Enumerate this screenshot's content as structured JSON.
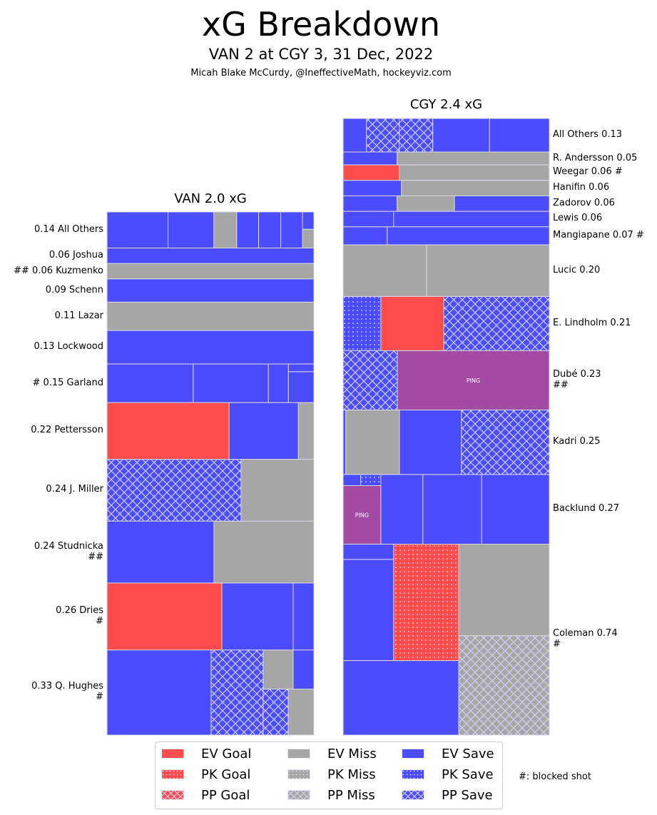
{
  "header": {
    "title": "xG Breakdown",
    "subtitle": "VAN 2 at CGY 3, 31 Dec, 2022",
    "credit": "Micah Blake McCurdy, @IneffectiveMath, hockeyviz.com"
  },
  "colors": {
    "goal": "#ff4b4b",
    "miss": "#a6a6a6",
    "save": "#4b4bff",
    "ping": "#a34ba3",
    "edge": "#d9d9e6"
  },
  "legend": {
    "items": [
      {
        "label": "EV Goal",
        "color": "goal",
        "pattern": "solid"
      },
      {
        "label": "PK Goal",
        "color": "goal",
        "pattern": "dots"
      },
      {
        "label": "PP Goal",
        "color": "goal",
        "pattern": "cross"
      },
      {
        "label": "EV Miss",
        "color": "miss",
        "pattern": "solid"
      },
      {
        "label": "PK Miss",
        "color": "miss",
        "pattern": "dots"
      },
      {
        "label": "PP Miss",
        "color": "miss",
        "pattern": "cross"
      },
      {
        "label": "EV Save",
        "color": "save",
        "pattern": "solid"
      },
      {
        "label": "PK Save",
        "color": "save",
        "pattern": "dots"
      },
      {
        "label": "PP Save",
        "color": "save",
        "pattern": "cross"
      }
    ],
    "note": "#: blocked shot"
  },
  "chart_data": [
    {
      "type": "treemap",
      "title": "VAN 2.0 xG",
      "team": "VAN",
      "total_xg": 2.0,
      "label_side": "left",
      "rows": [
        {
          "label": "0.14 All Others",
          "xg": 0.14,
          "shots": [
            {
              "x0": 0,
              "x1": 0.295,
              "y0": 0,
              "y1": 1,
              "t": "save",
              "p": "solid"
            },
            {
              "x0": 0.295,
              "x1": 0.516,
              "y0": 0,
              "y1": 1,
              "t": "save",
              "p": "solid"
            },
            {
              "x0": 0.516,
              "x1": 0.627,
              "y0": 0,
              "y1": 1,
              "t": "miss",
              "p": "solid"
            },
            {
              "x0": 0.627,
              "x1": 0.733,
              "y0": 0,
              "y1": 1,
              "t": "save",
              "p": "solid"
            },
            {
              "x0": 0.733,
              "x1": 0.84,
              "y0": 0,
              "y1": 1,
              "t": "save",
              "p": "solid",
              "alt": "miss"
            },
            {
              "x0": 0.84,
              "x1": 0.945,
              "y0": 0,
              "y1": 1,
              "t": "save",
              "p": "solid"
            },
            {
              "x0": 0.945,
              "x1": 1,
              "y0": 0,
              "y1": 0.48,
              "t": "save",
              "p": "solid"
            },
            {
              "x0": 0.945,
              "x1": 1,
              "y0": 0.48,
              "y1": 1,
              "t": "miss",
              "p": "solid"
            }
          ]
        },
        {
          "label": "0.06 Joshua",
          "xg": 0.06,
          "shots": [
            {
              "x0": 0,
              "x1": 1,
              "y0": 0,
              "y1": 1,
              "t": "save",
              "p": "solid"
            }
          ]
        },
        {
          "label": "## 0.06 Kuzmenko",
          "xg": 0.06,
          "shots": [
            {
              "x0": 0,
              "x1": 1,
              "y0": 0,
              "y1": 1,
              "t": "miss",
              "p": "solid"
            }
          ]
        },
        {
          "label": "0.09 Schenn",
          "xg": 0.09,
          "shots": [
            {
              "x0": 0,
              "x1": 1,
              "y0": 0,
              "y1": 1,
              "t": "save",
              "p": "solid"
            }
          ]
        },
        {
          "label": "0.11 Lazar",
          "xg": 0.11,
          "shots": [
            {
              "x0": 0,
              "x1": 1,
              "y0": 0,
              "y1": 1,
              "t": "miss",
              "p": "solid"
            }
          ]
        },
        {
          "label": "0.13 Lockwood",
          "xg": 0.13,
          "shots": [
            {
              "x0": 0,
              "x1": 1,
              "y0": 0,
              "y1": 1,
              "t": "save",
              "p": "solid"
            }
          ]
        },
        {
          "label": "# 0.15 Garland",
          "xg": 0.15,
          "shots": [
            {
              "x0": 0,
              "x1": 0.417,
              "y0": 0,
              "y1": 1,
              "t": "save",
              "p": "solid"
            },
            {
              "x0": 0.417,
              "x1": 0.78,
              "y0": 0,
              "y1": 1,
              "t": "save",
              "p": "solid"
            },
            {
              "x0": 0.78,
              "x1": 0.877,
              "y0": 0,
              "y1": 1,
              "t": "save",
              "p": "solid"
            },
            {
              "x0": 0.877,
              "x1": 1,
              "y0": 0,
              "y1": 0.2,
              "t": "save",
              "p": "solid"
            },
            {
              "x0": 0.877,
              "x1": 1,
              "y0": 0.2,
              "y1": 1,
              "t": "save",
              "p": "solid"
            }
          ]
        },
        {
          "label": "0.22 Pettersson",
          "xg": 0.22,
          "shots": [
            {
              "x0": 0,
              "x1": 0.59,
              "y0": 0,
              "y1": 1,
              "t": "goal",
              "p": "solid"
            },
            {
              "x0": 0.59,
              "x1": 0.925,
              "y0": 0,
              "y1": 1,
              "t": "save",
              "p": "solid"
            },
            {
              "x0": 0.925,
              "x1": 1,
              "y0": 0,
              "y1": 1,
              "t": "miss",
              "p": "solid"
            }
          ]
        },
        {
          "label": "0.24 J. Miller",
          "xg": 0.24,
          "shots": [
            {
              "x0": 0,
              "x1": 0.648,
              "y0": 0,
              "y1": 1,
              "t": "save",
              "p": "cross"
            },
            {
              "x0": 0.648,
              "x1": 1,
              "y0": 0,
              "y1": 1,
              "t": "miss",
              "p": "solid"
            }
          ]
        },
        {
          "label": "0.24 Studnicka\n##",
          "xg": 0.24,
          "shots": [
            {
              "x0": 0,
              "x1": 0.517,
              "y0": 0,
              "y1": 1,
              "t": "save",
              "p": "solid"
            },
            {
              "x0": 0.517,
              "x1": 1,
              "y0": 0,
              "y1": 1,
              "t": "miss",
              "p": "solid"
            }
          ]
        },
        {
          "label": "0.26 Dries\n#",
          "xg": 0.26,
          "shots": [
            {
              "x0": 0,
              "x1": 0.555,
              "y0": 0,
              "y1": 1,
              "t": "goal",
              "p": "solid"
            },
            {
              "x0": 0.555,
              "x1": 0.9,
              "y0": 0,
              "y1": 1,
              "t": "save",
              "p": "solid"
            },
            {
              "x0": 0.9,
              "x1": 1,
              "y0": 0,
              "y1": 1,
              "t": "save",
              "p": "solid"
            }
          ]
        },
        {
          "label": "0.33 Q. Hughes\n#",
          "xg": 0.33,
          "shots": [
            {
              "x0": 0,
              "x1": 0.503,
              "y0": 0,
              "y1": 1,
              "t": "save",
              "p": "solid"
            },
            {
              "x0": 0.503,
              "x1": 0.755,
              "y0": 0,
              "y1": 1,
              "t": "save",
              "p": "cross"
            },
            {
              "x0": 0.755,
              "x1": 0.9,
              "y0": 0,
              "y1": 0.46,
              "t": "miss",
              "p": "solid"
            },
            {
              "x0": 0.9,
              "x1": 1,
              "y0": 0,
              "y1": 0.46,
              "t": "save",
              "p": "solid"
            },
            {
              "x0": 0.755,
              "x1": 0.876,
              "y0": 0.46,
              "y1": 1,
              "t": "save",
              "p": "cross"
            },
            {
              "x0": 0.876,
              "x1": 1,
              "y0": 0.46,
              "y1": 1,
              "t": "miss",
              "p": "solid"
            }
          ]
        }
      ]
    },
    {
      "type": "treemap",
      "title": "CGY 2.4 xG",
      "team": "CGY",
      "total_xg": 2.4,
      "label_side": "right",
      "rows": [
        {
          "label": "All Others 0.13",
          "xg": 0.13,
          "shots": [
            {
              "x0": 0,
              "x1": 0.113,
              "y0": 0,
              "y1": 1,
              "t": "save",
              "p": "solid"
            },
            {
              "x0": 0.113,
              "x1": 0.272,
              "y0": 0,
              "y1": 1,
              "t": "save",
              "p": "cross"
            },
            {
              "x0": 0.272,
              "x1": 0.435,
              "y0": 0,
              "y1": 1,
              "t": "save",
              "p": "cross"
            },
            {
              "x0": 0.435,
              "x1": 0.71,
              "y0": 0,
              "y1": 1,
              "t": "save",
              "p": "solid"
            },
            {
              "x0": 0.71,
              "x1": 1,
              "y0": 0,
              "y1": 1,
              "t": "save",
              "p": "solid"
            }
          ]
        },
        {
          "label": "R. Andersson 0.05",
          "xg": 0.05,
          "shots": [
            {
              "x0": 0,
              "x1": 0.262,
              "y0": 0,
              "y1": 1,
              "t": "save",
              "p": "solid"
            },
            {
              "x0": 0.262,
              "x1": 1,
              "y0": 0,
              "y1": 1,
              "t": "miss",
              "p": "solid"
            }
          ]
        },
        {
          "label": "Weegar 0.06 #",
          "xg": 0.06,
          "shots": [
            {
              "x0": 0,
              "x1": 0.272,
              "y0": 0,
              "y1": 1,
              "t": "goal",
              "p": "solid"
            },
            {
              "x0": 0.272,
              "x1": 1,
              "y0": 0,
              "y1": 1,
              "t": "miss",
              "p": "solid"
            }
          ]
        },
        {
          "label": "Hanifin 0.06",
          "xg": 0.06,
          "shots": [
            {
              "x0": 0,
              "x1": 0.283,
              "y0": 0,
              "y1": 1,
              "t": "save",
              "p": "solid"
            },
            {
              "x0": 0.283,
              "x1": 1,
              "y0": 0,
              "y1": 1,
              "t": "miss",
              "p": "solid"
            }
          ]
        },
        {
          "label": "Zadorov 0.06",
          "xg": 0.06,
          "shots": [
            {
              "x0": 0,
              "x1": 0.262,
              "y0": 0,
              "y1": 1,
              "t": "save",
              "p": "solid"
            },
            {
              "x0": 0.262,
              "x1": 0.54,
              "y0": 0,
              "y1": 1,
              "t": "miss",
              "p": "solid"
            },
            {
              "x0": 0.54,
              "x1": 1,
              "y0": 0,
              "y1": 1,
              "t": "save",
              "p": "solid"
            }
          ]
        },
        {
          "label": "Lewis 0.06",
          "xg": 0.06,
          "shots": [
            {
              "x0": 0,
              "x1": 0.245,
              "y0": 0,
              "y1": 1,
              "t": "save",
              "p": "solid"
            },
            {
              "x0": 0.245,
              "x1": 1,
              "y0": 0,
              "y1": 1,
              "t": "save",
              "p": "solid"
            }
          ]
        },
        {
          "label": "Mangiapane 0.07 #",
          "xg": 0.07,
          "shots": [
            {
              "x0": 0,
              "x1": 0.214,
              "y0": 0,
              "y1": 1,
              "t": "save",
              "p": "solid"
            },
            {
              "x0": 0.214,
              "x1": 1,
              "y0": 0,
              "y1": 1,
              "t": "save",
              "p": "solid"
            }
          ]
        },
        {
          "label": "Lucic 0.20",
          "xg": 0.2,
          "shots": [
            {
              "x0": 0,
              "x1": 0.405,
              "y0": 0,
              "y1": 1,
              "t": "miss",
              "p": "solid"
            },
            {
              "x0": 0.405,
              "x1": 1,
              "y0": 0,
              "y1": 1,
              "t": "miss",
              "p": "solid"
            }
          ]
        },
        {
          "label": "E. Lindholm 0.21",
          "xg": 0.21,
          "shots": [
            {
              "x0": 0,
              "x1": 0.183,
              "y0": 0,
              "y1": 1,
              "t": "save",
              "p": "dots"
            },
            {
              "x0": 0.183,
              "x1": 0.488,
              "y0": 0,
              "y1": 1,
              "t": "goal",
              "p": "solid"
            },
            {
              "x0": 0.488,
              "x1": 1,
              "y0": 0,
              "y1": 1,
              "t": "save",
              "p": "cross"
            }
          ]
        },
        {
          "label": "Dubé 0.23\n##",
          "xg": 0.23,
          "shots": [
            {
              "x0": 0,
              "x1": 0.263,
              "y0": 0,
              "y1": 1,
              "t": "save",
              "p": "cross"
            },
            {
              "x0": 0.263,
              "x1": 1,
              "y0": 0,
              "y1": 1,
              "t": "ping",
              "p": "solid",
              "text": "PING"
            }
          ]
        },
        {
          "label": "Kadri 0.25",
          "xg": 0.25,
          "shots": [
            {
              "x0": 0,
              "x1": 0.013,
              "y0": 0,
              "y1": 1,
              "t": "save",
              "p": "solid"
            },
            {
              "x0": 0.013,
              "x1": 0.273,
              "y0": 0,
              "y1": 1,
              "t": "miss",
              "p": "solid"
            },
            {
              "x0": 0.273,
              "x1": 0.574,
              "y0": 0,
              "y1": 1,
              "t": "save",
              "p": "solid"
            },
            {
              "x0": 0.574,
              "x1": 1,
              "y0": 0,
              "y1": 1,
              "t": "save",
              "p": "cross"
            }
          ]
        },
        {
          "label": "Backlund 0.27",
          "xg": 0.27,
          "shots": [
            {
              "x0": 0,
              "x1": 0.085,
              "y0": 0,
              "y1": 0.16,
              "t": "save",
              "p": "solid"
            },
            {
              "x0": 0.085,
              "x1": 0.183,
              "y0": 0,
              "y1": 0.16,
              "t": "save",
              "p": "dots"
            },
            {
              "x0": 0,
              "x1": 0.183,
              "y0": 0.16,
              "y1": 1,
              "t": "ping",
              "p": "solid",
              "text": "PING"
            },
            {
              "x0": 0.183,
              "x1": 0.387,
              "y0": 0,
              "y1": 1,
              "t": "save",
              "p": "solid"
            },
            {
              "x0": 0.387,
              "x1": 0.672,
              "y0": 0,
              "y1": 1,
              "t": "save",
              "p": "solid"
            },
            {
              "x0": 0.672,
              "x1": 1,
              "y0": 0,
              "y1": 1,
              "t": "save",
              "p": "solid"
            }
          ]
        },
        {
          "label": "Coleman 0.74\n#",
          "xg": 0.74,
          "shots": [
            {
              "x0": 0,
              "x1": 0.245,
              "y0": 0,
              "y1": 0.08,
              "t": "save",
              "p": "solid"
            },
            {
              "x0": 0,
              "x1": 0.245,
              "y0": 0.08,
              "y1": 0.61,
              "t": "save",
              "p": "solid"
            },
            {
              "x0": 0.245,
              "x1": 0.561,
              "y0": 0,
              "y1": 0.61,
              "t": "goal",
              "p": "dots"
            },
            {
              "x0": 0.561,
              "x1": 1,
              "y0": 0,
              "y1": 0.48,
              "t": "miss",
              "p": "solid"
            },
            {
              "x0": 0,
              "x1": 0.561,
              "y0": 0.61,
              "y1": 1,
              "t": "save",
              "p": "solid"
            },
            {
              "x0": 0.561,
              "x1": 1,
              "y0": 0.48,
              "y1": 1,
              "t": "miss",
              "p": "cross"
            }
          ]
        }
      ]
    }
  ]
}
